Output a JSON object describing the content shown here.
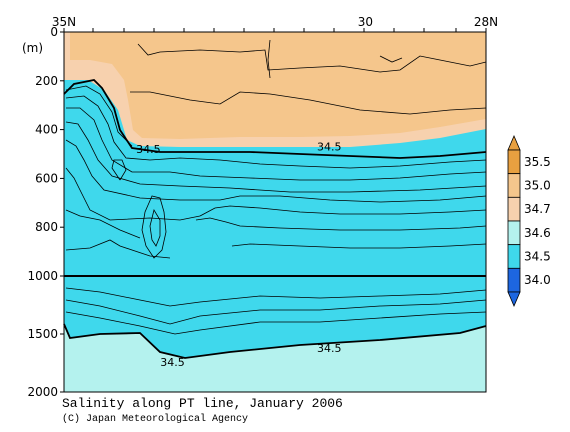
{
  "chart_data": {
    "type": "heatmap",
    "title": "Salinity along PT line, January 2006",
    "credit": "(C) Japan Meteorological Agency",
    "x_axis": {
      "range": [
        "35N",
        "28N"
      ],
      "ticks": [
        {
          "value": 35,
          "label": "35N"
        },
        {
          "value": 30,
          "label": "30"
        },
        {
          "value": 28,
          "label": "28N"
        }
      ]
    },
    "y_axis": {
      "unit_label": "(m)",
      "range": [
        0,
        2000
      ],
      "break_at": 1000,
      "ticks": [
        {
          "value": 0,
          "label": "0"
        },
        {
          "value": 200,
          "label": "200"
        },
        {
          "value": 400,
          "label": "400"
        },
        {
          "value": 600,
          "label": "600"
        },
        {
          "value": 800,
          "label": "800"
        },
        {
          "value": 1000,
          "label": "1000"
        },
        {
          "value": 1500,
          "label": "1500"
        },
        {
          "value": 2000,
          "label": "2000"
        }
      ]
    },
    "colorbar": {
      "levels": [
        {
          "label": "35.5",
          "color": "#e8a040"
        },
        {
          "label": "35.0",
          "color": "#f5c68c"
        },
        {
          "label": "34.7",
          "color": "#f7d1ae"
        },
        {
          "label": "34.6",
          "color": "#b4f2ee"
        },
        {
          "label": "34.5",
          "color": "#3fd8ec"
        },
        {
          "label": "34.0",
          "color": "#1d66e0"
        }
      ]
    },
    "contour_labels": [
      {
        "text": "34.5",
        "x": 33.6,
        "depth": 480
      },
      {
        "text": "34.5",
        "x": 30.6,
        "depth": 470
      },
      {
        "text": "34.5",
        "x": 33.2,
        "depth": 1740
      },
      {
        "text": "34.5",
        "x": 30.6,
        "depth": 1620
      }
    ],
    "colors": {
      "high": "#f5c68c",
      "mid": "#f7d1ae",
      "low": "#3fd8ec",
      "deep": "#b4f2ee"
    }
  }
}
